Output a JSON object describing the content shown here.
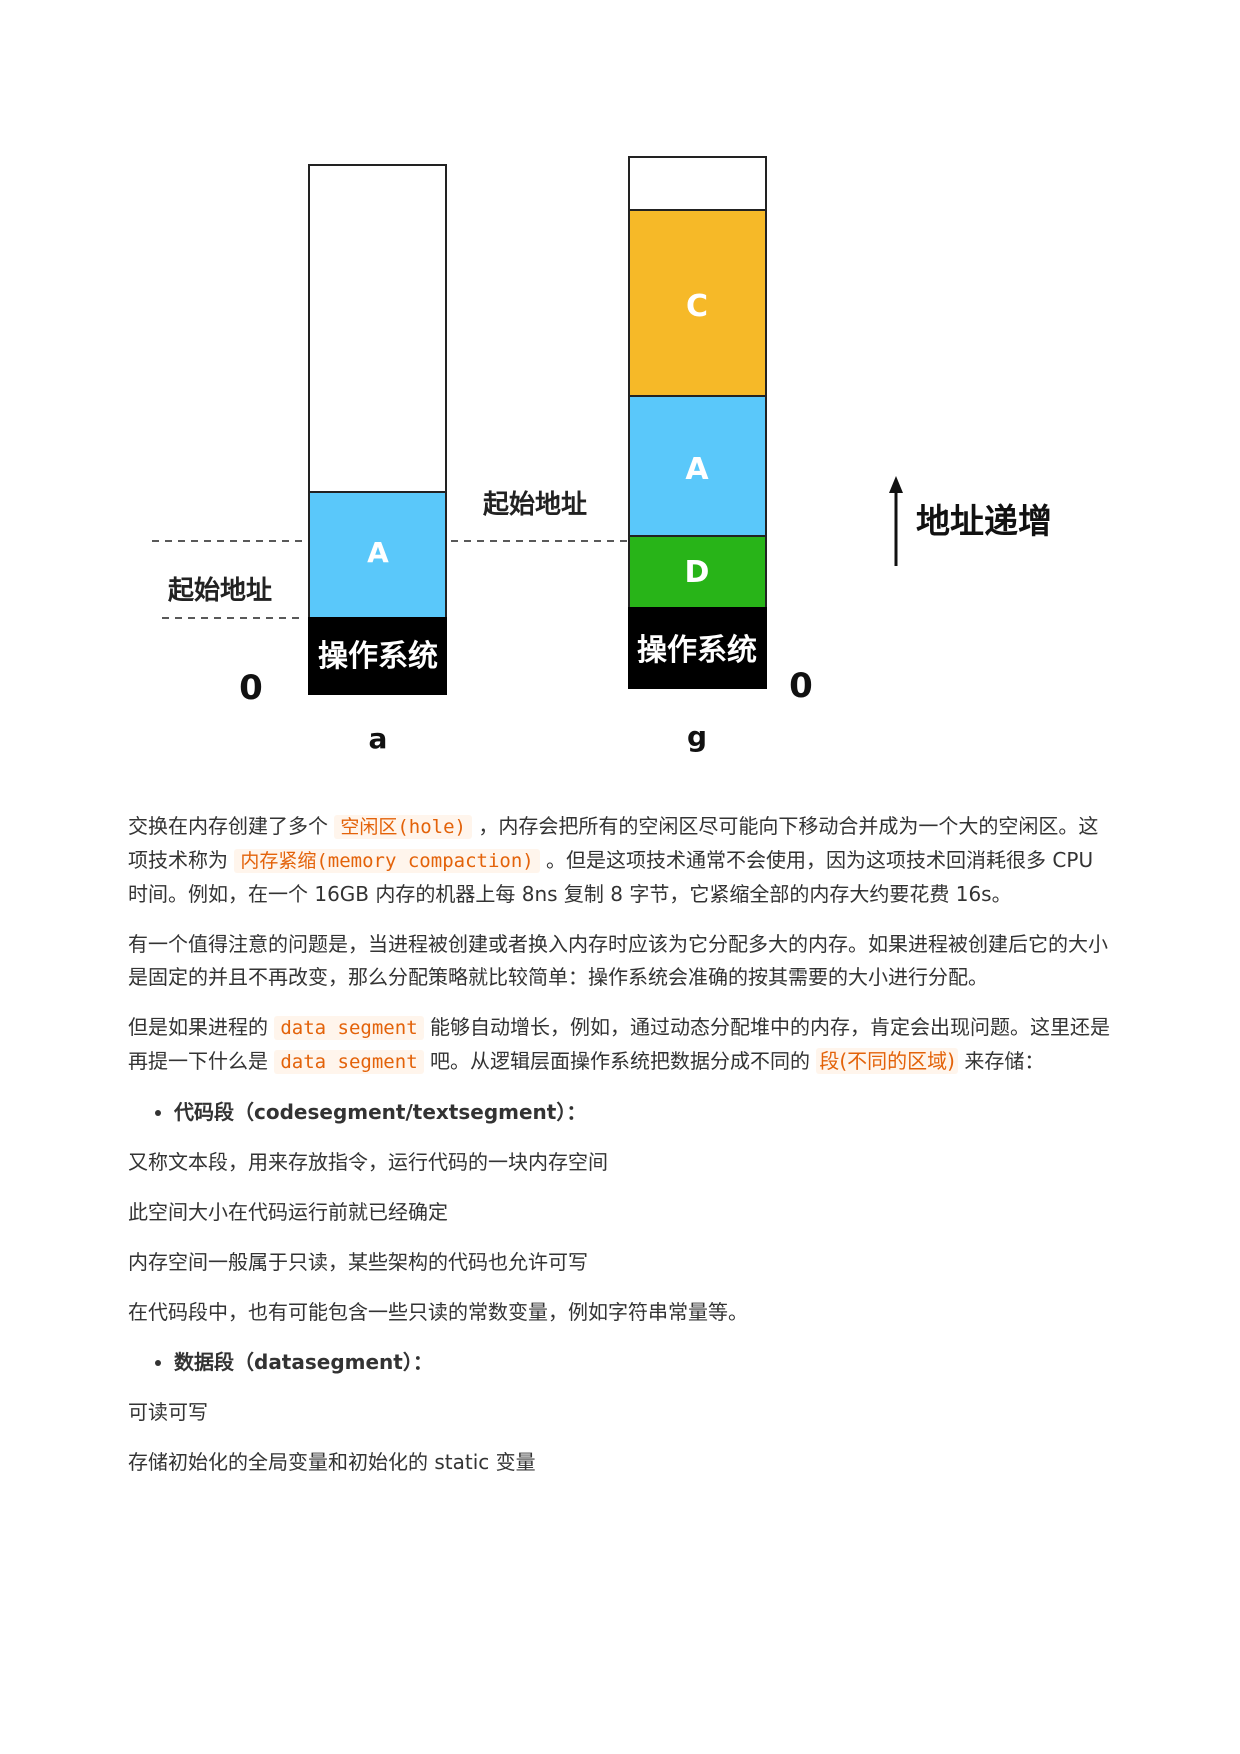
{
  "diagram": {
    "left_column": {
      "os_label": "操作系统",
      "block_a_label": "A",
      "start_address_label": "起始地址",
      "zero_label": "0",
      "caption": "a"
    },
    "right_column": {
      "os_label": "操作系统",
      "block_c_label": "C",
      "block_a_label": "A",
      "block_d_label": "D",
      "start_address_label": "起始地址",
      "zero_label": "0",
      "caption": "g"
    },
    "arrow_label": "地址递增",
    "colors": {
      "os": "#000000",
      "process_a": "#5ac8fa",
      "process_c": "#f6b928",
      "process_d": "#28b418",
      "free": "#ffffff"
    }
  },
  "paragraphs": {
    "p1": {
      "t1": "交换在内存创建了多个 ",
      "c1": "空闲区(hole)",
      "t2": " ，内存会把所有的空闲区尽可能向下移动合并成为一个大的空闲区。这项技术称为 ",
      "c2": "内存紧缩(memory compaction)",
      "t3": " 。但是这项技术通常不会使用，因为这项技术回消耗很多 CPU 时间。例如，在一个 16GB 内存的机器上每 8ns 复制 8 字节，它紧缩全部的内存大约要花费 16s。"
    },
    "p2": "有一个值得注意的问题是，当进程被创建或者换入内存时应该为它分配多大的内存。如果进程被创建后它的大小是固定的并且不再改变，那么分配策略就比较简单：操作系统会准确的按其需要的大小进行分配。",
    "p3": {
      "t1": "但是如果进程的 ",
      "c1": "data segment",
      "t2": " 能够自动增长，例如，通过动态分配堆中的内存，肯定会出现问题。这里还是再提一下什么是 ",
      "c2": "data segment",
      "t3": " 吧。从逻辑层面操作系统把数据分成不同的 ",
      "c3": "段(不同的区域)",
      "t4": " 来存储："
    },
    "bullet1": "代码段（codesegment/textsegment）：",
    "code_lines": [
      "又称文本段，用来存放指令，运行代码的一块内存空间",
      "此空间大小在代码运行前就已经确定",
      "内存空间一般属于只读，某些架构的代码也允许可写",
      "在代码段中，也有可能包含一些只读的常数变量，例如字符串常量等。"
    ],
    "bullet2": "数据段（datasegment）：",
    "data_lines": [
      "可读可写",
      "存储初始化的全局变量和初始化的 static 变量"
    ]
  }
}
